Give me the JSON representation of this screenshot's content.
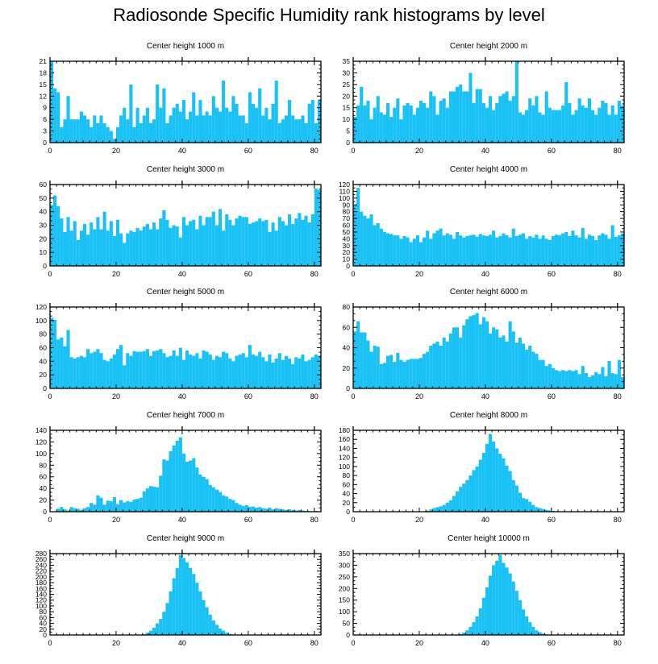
{
  "title": "Radiosonde Specific Humidity rank histograms by level",
  "colors": {
    "bar": "#19c1f5",
    "axis": "#000000",
    "background": "#ffffff"
  },
  "chart_data": [
    {
      "type": "bar",
      "title": "Center height 1000 m",
      "xlim": [
        0,
        82
      ],
      "ylim": [
        0,
        21
      ],
      "xticks": [
        0,
        20,
        40,
        60,
        80
      ],
      "yticks": [
        0,
        3,
        6,
        9,
        12,
        15,
        18,
        21
      ],
      "values": [
        21,
        14,
        13,
        4,
        6,
        12,
        6,
        6,
        6,
        8,
        7,
        6,
        4,
        7,
        5,
        7,
        5,
        4,
        3,
        1,
        4,
        7,
        9,
        6,
        15,
        4,
        9,
        5,
        7,
        9,
        5,
        6,
        15,
        9,
        14,
        5,
        7,
        9,
        10,
        8,
        11,
        6,
        8,
        13,
        7,
        11,
        7,
        8,
        7,
        12,
        9,
        8,
        16,
        9,
        8,
        12,
        10,
        7,
        7,
        5,
        13,
        10,
        9,
        14,
        7,
        9,
        6,
        10,
        16,
        5,
        6,
        7,
        11,
        7,
        6,
        6,
        7,
        5,
        10,
        11,
        5,
        11
      ]
    },
    {
      "type": "bar",
      "title": "Center height 2000 m",
      "xlim": [
        0,
        82
      ],
      "ylim": [
        0,
        35
      ],
      "xticks": [
        0,
        20,
        40,
        60,
        80
      ],
      "yticks": [
        0,
        5,
        10,
        15,
        20,
        25,
        30,
        35
      ],
      "values": [
        11,
        16,
        24,
        16,
        18,
        10,
        15,
        20,
        13,
        12,
        17,
        11,
        15,
        19,
        10,
        16,
        17,
        16,
        12,
        15,
        18,
        17,
        15,
        22,
        20,
        12,
        18,
        19,
        15,
        22,
        22,
        24,
        25,
        22,
        22,
        30,
        17,
        23,
        23,
        17,
        15,
        20,
        14,
        17,
        20,
        21,
        22,
        18,
        20,
        35,
        13,
        12,
        14,
        19,
        16,
        20,
        13,
        12,
        22,
        15,
        14,
        14,
        14,
        16,
        26,
        17,
        12,
        14,
        19,
        16,
        15,
        19,
        14,
        12,
        15,
        18,
        17,
        12,
        16,
        12,
        18,
        16
      ]
    },
    {
      "type": "bar",
      "title": "Center height 3000 m",
      "xlim": [
        0,
        82
      ],
      "ylim": [
        0,
        60
      ],
      "xticks": [
        0,
        20,
        40,
        60,
        80
      ],
      "yticks": [
        0,
        10,
        20,
        30,
        40,
        50,
        60
      ],
      "values": [
        45,
        52,
        44,
        35,
        25,
        36,
        26,
        33,
        19,
        26,
        31,
        23,
        32,
        27,
        36,
        27,
        40,
        26,
        33,
        22,
        34,
        24,
        17,
        24,
        26,
        25,
        28,
        26,
        29,
        31,
        27,
        32,
        27,
        35,
        41,
        34,
        28,
        30,
        29,
        21,
        36,
        30,
        33,
        34,
        27,
        37,
        30,
        36,
        36,
        40,
        30,
        42,
        26,
        38,
        34,
        30,
        35,
        37,
        36,
        36,
        31,
        32,
        33,
        35,
        33,
        34,
        25,
        32,
        26,
        36,
        33,
        30,
        38,
        31,
        35,
        39,
        34,
        37,
        32,
        38,
        57,
        56
      ]
    },
    {
      "type": "bar",
      "title": "Center height 4000 m",
      "xlim": [
        0,
        82
      ],
      "ylim": [
        0,
        120
      ],
      "xticks": [
        0,
        20,
        40,
        60,
        80
      ],
      "yticks": [
        0,
        10,
        20,
        30,
        40,
        50,
        60,
        70,
        80,
        90,
        100,
        110,
        120
      ],
      "values": [
        90,
        115,
        80,
        74,
        70,
        76,
        60,
        63,
        55,
        50,
        48,
        47,
        45,
        45,
        40,
        44,
        42,
        35,
        40,
        45,
        35,
        42,
        52,
        40,
        48,
        52,
        55,
        45,
        48,
        46,
        40,
        50,
        45,
        42,
        44,
        45,
        46,
        43,
        47,
        45,
        44,
        46,
        52,
        42,
        44,
        48,
        45,
        42,
        55,
        44,
        46,
        48,
        40,
        44,
        42,
        46,
        40,
        45,
        40,
        38,
        44,
        46,
        45,
        48,
        50,
        44,
        52,
        45,
        42,
        56,
        40,
        46,
        44,
        38,
        45,
        48,
        46,
        40,
        60,
        43,
        45,
        48
      ]
    },
    {
      "type": "bar",
      "title": "Center height 5000 m",
      "xlim": [
        0,
        82
      ],
      "ylim": [
        0,
        120
      ],
      "xticks": [
        0,
        20,
        40,
        60,
        80
      ],
      "yticks": [
        0,
        20,
        40,
        60,
        80,
        100,
        120
      ],
      "values": [
        104,
        101,
        72,
        75,
        62,
        86,
        46,
        44,
        46,
        48,
        46,
        58,
        52,
        54,
        58,
        52,
        42,
        40,
        44,
        50,
        58,
        64,
        34,
        52,
        48,
        55,
        54,
        54,
        55,
        58,
        48,
        55,
        56,
        58,
        52,
        46,
        48,
        56,
        48,
        60,
        42,
        56,
        50,
        48,
        52,
        44,
        56,
        54,
        50,
        42,
        48,
        46,
        54,
        52,
        44,
        40,
        48,
        50,
        52,
        46,
        64,
        50,
        48,
        54,
        46,
        40,
        50,
        38,
        44,
        52,
        42,
        48,
        44,
        36,
        46,
        44,
        50,
        40,
        42,
        46,
        50,
        48
      ]
    },
    {
      "type": "bar",
      "title": "Center height 6000 m",
      "xlim": [
        0,
        82
      ],
      "ylim": [
        0,
        80
      ],
      "xticks": [
        0,
        20,
        40,
        60,
        80
      ],
      "yticks": [
        0,
        20,
        40,
        60,
        80
      ],
      "values": [
        56,
        66,
        55,
        55,
        47,
        36,
        42,
        41,
        24,
        25,
        32,
        33,
        26,
        35,
        28,
        26,
        28,
        29,
        29,
        29,
        30,
        34,
        36,
        42,
        44,
        46,
        42,
        50,
        46,
        54,
        60,
        60,
        50,
        62,
        68,
        71,
        72,
        74,
        63,
        70,
        66,
        54,
        60,
        58,
        50,
        52,
        46,
        66,
        56,
        45,
        50,
        44,
        38,
        42,
        36,
        34,
        28,
        28,
        22,
        24,
        20,
        18,
        17,
        18,
        17,
        18,
        17,
        18,
        14,
        22,
        15,
        11,
        13,
        16,
        14,
        21,
        12,
        27,
        15,
        14,
        28,
        11
      ]
    },
    {
      "type": "bar",
      "title": "Center height 7000 m",
      "xlim": [
        0,
        82
      ],
      "ylim": [
        0,
        140
      ],
      "xticks": [
        0,
        20,
        40,
        60,
        80
      ],
      "yticks": [
        0,
        20,
        40,
        60,
        80,
        100,
        120,
        140
      ],
      "values": [
        0,
        0,
        5,
        8,
        4,
        2,
        8,
        6,
        5,
        3,
        6,
        8,
        15,
        12,
        28,
        24,
        12,
        19,
        18,
        25,
        13,
        20,
        16,
        18,
        17,
        21,
        22,
        24,
        35,
        40,
        44,
        43,
        42,
        62,
        90,
        88,
        104,
        114,
        122,
        128,
        100,
        86,
        88,
        92,
        76,
        64,
        60,
        56,
        46,
        42,
        38,
        34,
        28,
        26,
        22,
        20,
        15,
        12,
        10,
        11,
        8,
        9,
        7,
        8,
        6,
        5,
        7,
        4,
        6,
        5,
        4,
        3,
        4,
        3,
        2,
        3,
        2,
        1,
        1,
        0,
        1,
        0
      ]
    },
    {
      "type": "bar",
      "title": "Center height 8000 m",
      "xlim": [
        0,
        82
      ],
      "ylim": [
        0,
        180
      ],
      "xticks": [
        0,
        20,
        40,
        60,
        80
      ],
      "yticks": [
        0,
        20,
        40,
        60,
        80,
        100,
        120,
        140,
        160,
        180
      ],
      "values": [
        0,
        0,
        0,
        0,
        0,
        0,
        0,
        0,
        0,
        0,
        0,
        0,
        0,
        0,
        0,
        0,
        0,
        0,
        0,
        0,
        0,
        0,
        2,
        5,
        8,
        10,
        12,
        15,
        20,
        25,
        35,
        45,
        55,
        62,
        70,
        80,
        92,
        100,
        115,
        130,
        150,
        172,
        155,
        140,
        128,
        118,
        102,
        90,
        70,
        58,
        42,
        30,
        28,
        22,
        15,
        10,
        8,
        6,
        4,
        3,
        2,
        1,
        1,
        0,
        0,
        0,
        0,
        0,
        0,
        0,
        0,
        0,
        0,
        0,
        0,
        0,
        0,
        0,
        0,
        0,
        0,
        0
      ]
    },
    {
      "type": "bar",
      "title": "Center height 9000 m",
      "xlim": [
        0,
        82
      ],
      "ylim": [
        0,
        280
      ],
      "xticks": [
        0,
        20,
        40,
        60,
        80
      ],
      "yticks": [
        0,
        20,
        40,
        60,
        80,
        100,
        120,
        140,
        160,
        180,
        200,
        220,
        240,
        260,
        280
      ],
      "values": [
        0,
        0,
        0,
        0,
        0,
        0,
        0,
        0,
        0,
        0,
        0,
        0,
        0,
        0,
        0,
        0,
        0,
        0,
        0,
        0,
        0,
        0,
        0,
        0,
        0,
        0,
        0,
        0,
        3,
        8,
        15,
        25,
        40,
        55,
        80,
        110,
        150,
        195,
        230,
        275,
        265,
        250,
        230,
        210,
        180,
        150,
        120,
        95,
        70,
        50,
        35,
        22,
        15,
        8,
        4,
        2,
        1,
        0,
        0,
        0,
        0,
        0,
        0,
        0,
        0,
        0,
        0,
        0,
        0,
        0,
        0,
        0,
        0,
        0,
        0,
        0,
        0,
        0,
        0,
        0,
        0,
        0
      ]
    },
    {
      "type": "bar",
      "title": "Center height 10000 m",
      "xlim": [
        0,
        82
      ],
      "ylim": [
        0,
        350
      ],
      "xticks": [
        0,
        20,
        40,
        60,
        80
      ],
      "yticks": [
        0,
        50,
        100,
        150,
        200,
        250,
        300,
        350
      ],
      "values": [
        0,
        0,
        0,
        0,
        0,
        0,
        0,
        0,
        0,
        0,
        0,
        0,
        0,
        0,
        0,
        0,
        0,
        0,
        0,
        0,
        0,
        0,
        0,
        0,
        0,
        0,
        0,
        0,
        0,
        0,
        0,
        2,
        5,
        10,
        20,
        35,
        55,
        80,
        115,
        160,
        205,
        255,
        300,
        320,
        345,
        310,
        290,
        265,
        230,
        190,
        150,
        110,
        80,
        55,
        35,
        20,
        12,
        6,
        3,
        2,
        1,
        0,
        0,
        0,
        0,
        0,
        0,
        0,
        0,
        0,
        0,
        0,
        0,
        0,
        0,
        0,
        0,
        0,
        0,
        0,
        0,
        0
      ]
    }
  ]
}
